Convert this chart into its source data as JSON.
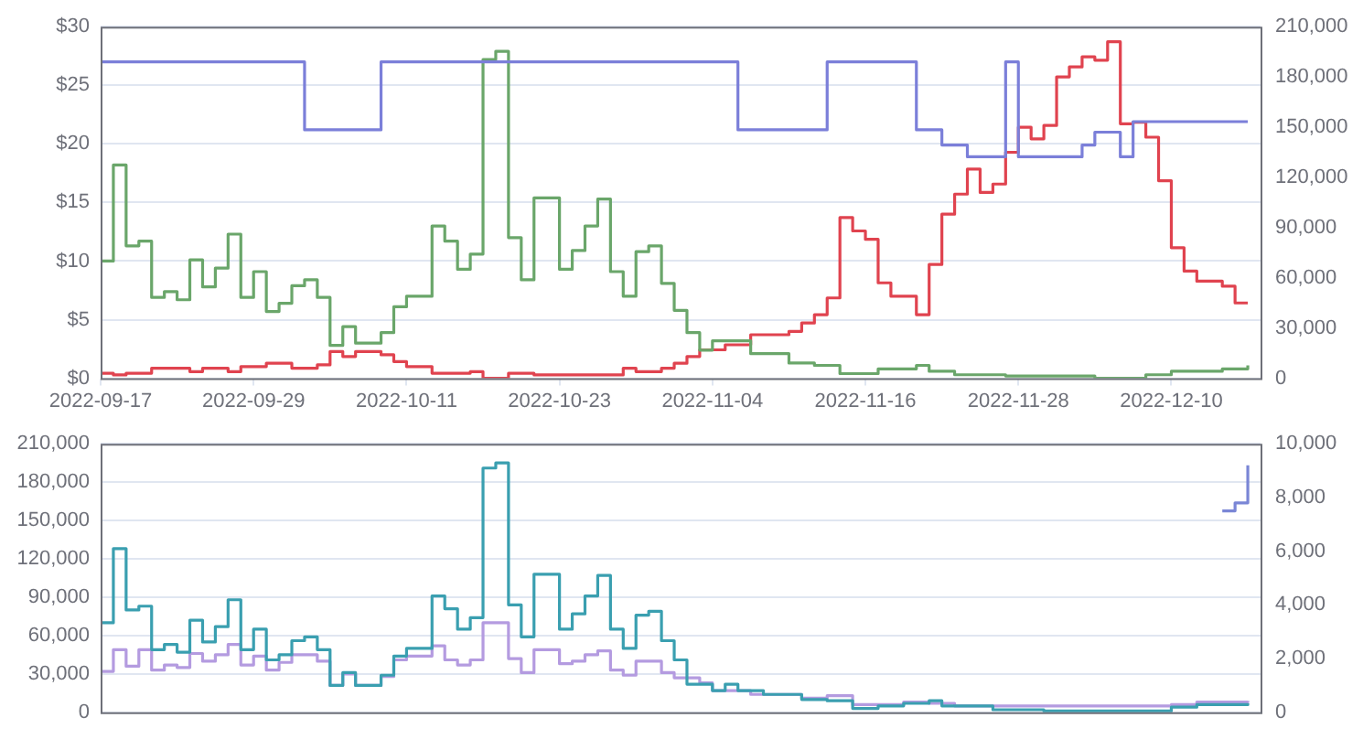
{
  "chart_data": [
    {
      "type": "step",
      "xlim": [
        "2022-09-17",
        "2022-12-17"
      ],
      "xticks": [
        "2022-09-17",
        "2022-09-29",
        "2022-10-11",
        "2022-10-23",
        "2022-11-04",
        "2022-11-16",
        "2022-11-28",
        "2022-12-10"
      ],
      "ylim": [
        0,
        30
      ],
      "yticks": [
        {
          "value": 0,
          "label": "$0"
        },
        {
          "value": 5,
          "label": "$5"
        },
        {
          "value": 10,
          "label": "$10"
        },
        {
          "value": 15,
          "label": "$15"
        },
        {
          "value": 20,
          "label": "$20"
        },
        {
          "value": 25,
          "label": "$25"
        },
        {
          "value": 30,
          "label": "$30"
        }
      ],
      "y2lim": [
        0,
        210000
      ],
      "y2ticks": [
        0,
        {
          "value": 30000,
          "label": "30,000"
        },
        {
          "value": 60000,
          "label": "60,000"
        },
        {
          "value": 90000,
          "label": "90,000"
        },
        {
          "value": 120000,
          "label": "120,000"
        },
        {
          "value": 150000,
          "label": "150,000"
        },
        {
          "value": 180000,
          "label": "180,000"
        },
        {
          "value": 210000,
          "label": "210,000"
        }
      ],
      "grid": "y",
      "line_style": "solid",
      "series": [
        {
          "color": "#7b7fd9",
          "x": [
            "2022-09-17",
            "2022-10-03",
            "2022-10-09",
            "2022-11-06",
            "2022-11-13",
            "2022-11-20",
            "2022-11-22",
            "2022-11-24",
            "2022-11-27",
            "2022-11-28",
            "2022-12-03",
            "2022-12-04",
            "2022-12-06",
            "2022-12-07",
            "2022-12-16"
          ],
          "values": [
            27,
            21.2,
            27,
            21.2,
            27,
            21.2,
            19.9,
            18.9,
            27,
            18.9,
            19.9,
            21,
            18.9,
            21.9,
            21.9
          ]
        },
        {
          "color": "#6aa66a",
          "x": [
            "2022-09-17",
            "2022-09-18",
            "2022-09-19",
            "2022-09-20",
            "2022-09-21",
            "2022-09-22",
            "2022-09-23",
            "2022-09-24",
            "2022-09-25",
            "2022-09-26",
            "2022-09-27",
            "2022-09-28",
            "2022-09-29",
            "2022-09-30",
            "2022-10-01",
            "2022-10-02",
            "2022-10-03",
            "2022-10-04",
            "2022-10-05",
            "2022-10-06",
            "2022-10-07",
            "2022-10-09",
            "2022-10-10",
            "2022-10-11",
            "2022-10-13",
            "2022-10-14",
            "2022-10-15",
            "2022-10-16",
            "2022-10-17",
            "2022-10-18",
            "2022-10-19",
            "2022-10-20",
            "2022-10-21",
            "2022-10-23",
            "2022-10-24",
            "2022-10-25",
            "2022-10-26",
            "2022-10-27",
            "2022-10-28",
            "2022-10-29",
            "2022-10-30",
            "2022-10-31",
            "2022-11-01",
            "2022-11-02",
            "2022-11-03",
            "2022-11-04",
            "2022-11-07",
            "2022-11-10",
            "2022-11-12",
            "2022-11-14",
            "2022-11-17",
            "2022-11-20",
            "2022-11-21",
            "2022-11-23",
            "2022-11-27",
            "2022-12-04",
            "2022-12-08",
            "2022-12-10",
            "2022-12-14",
            "2022-12-16"
          ],
          "values": [
            10.0,
            18.2,
            11.3,
            11.7,
            6.9,
            7.4,
            6.7,
            10.1,
            7.8,
            9.4,
            12.3,
            6.9,
            9.1,
            5.7,
            6.4,
            7.9,
            8.4,
            6.9,
            2.8,
            4.4,
            3.0,
            3.9,
            6.1,
            7.0,
            13.0,
            11.7,
            9.3,
            10.6,
            27.2,
            27.9,
            12.0,
            8.4,
            15.4,
            9.3,
            10.9,
            13.0,
            15.3,
            9.1,
            7.0,
            10.8,
            11.3,
            8.1,
            5.8,
            3.9,
            2.4,
            3.2,
            2.1,
            1.3,
            1.1,
            0.4,
            0.8,
            1.1,
            0.6,
            0.3,
            0.2,
            0,
            0.3,
            0.6,
            0.8,
            1.1
          ]
        },
        {
          "color": "#e0434f",
          "axis": "y2",
          "x": [
            "2022-09-17",
            "2022-09-18",
            "2022-09-19",
            "2022-09-21",
            "2022-09-24",
            "2022-09-25",
            "2022-09-27",
            "2022-09-28",
            "2022-09-30",
            "2022-10-02",
            "2022-10-04",
            "2022-10-05",
            "2022-10-06",
            "2022-10-07",
            "2022-10-09",
            "2022-10-10",
            "2022-10-11",
            "2022-10-13",
            "2022-10-16",
            "2022-10-17",
            "2022-10-19",
            "2022-10-21",
            "2022-10-28",
            "2022-10-29",
            "2022-10-31",
            "2022-11-01",
            "2022-11-02",
            "2022-11-03",
            "2022-11-05",
            "2022-11-07",
            "2022-11-10",
            "2022-11-11",
            "2022-11-12",
            "2022-11-13",
            "2022-11-14",
            "2022-11-15",
            "2022-11-16",
            "2022-11-17",
            "2022-11-18",
            "2022-11-20",
            "2022-11-21",
            "2022-11-22",
            "2022-11-23",
            "2022-11-24",
            "2022-11-25",
            "2022-11-26",
            "2022-11-27",
            "2022-11-28",
            "2022-11-29",
            "2022-11-30",
            "2022-12-01",
            "2022-12-02",
            "2022-12-03",
            "2022-12-04",
            "2022-12-05",
            "2022-12-06",
            "2022-12-07",
            "2022-12-08",
            "2022-12-09",
            "2022-12-10",
            "2022-12-11",
            "2022-12-12",
            "2022-12-14",
            "2022-12-15",
            "2022-12-16"
          ],
          "values": [
            3000,
            2000,
            3000,
            6000,
            4000,
            6000,
            4000,
            7000,
            9000,
            6000,
            8000,
            16000,
            13000,
            16000,
            14000,
            10000,
            7000,
            3000,
            4000,
            0,
            3000,
            2000,
            6000,
            4000,
            6000,
            9000,
            13000,
            17000,
            20000,
            26000,
            28000,
            33000,
            38000,
            48000,
            96000,
            88000,
            83000,
            57000,
            49000,
            38000,
            68000,
            98000,
            110000,
            125000,
            111000,
            116000,
            135000,
            150000,
            143000,
            151000,
            180000,
            186000,
            192000,
            190000,
            201000,
            152000,
            153000,
            144000,
            118000,
            78000,
            64000,
            58000,
            55000,
            45000,
            45000
          ]
        }
      ]
    },
    {
      "type": "step",
      "xlim": [
        "2022-09-17",
        "2022-12-17"
      ],
      "xticks": [
        "2022-09-17",
        "2022-09-29",
        "2022-10-11",
        "2022-10-23",
        "2022-11-04",
        "2022-11-16",
        "2022-11-28",
        "2022-12-10"
      ],
      "tick_labels": "y",
      "ylim": [
        0,
        210000
      ],
      "yticks": [
        0,
        {
          "value": 30000,
          "label": "30,000"
        },
        {
          "value": 60000,
          "label": "60,000"
        },
        {
          "value": 90000,
          "label": "90,000"
        },
        {
          "value": 120000,
          "label": "120,000"
        },
        {
          "value": 150000,
          "label": "150,000"
        },
        {
          "value": 180000,
          "label": "180,000"
        },
        {
          "value": 210000,
          "label": "210,000"
        }
      ],
      "y2lim": [
        0,
        10000
      ],
      "y2ticks": [
        0,
        {
          "value": 2000,
          "label": "2,000"
        },
        {
          "value": 4000,
          "label": "4,000"
        },
        {
          "value": 6000,
          "label": "6,000"
        },
        {
          "value": 8000,
          "label": "8,000"
        },
        {
          "value": 10000,
          "label": "10,000"
        }
      ],
      "grid": "y",
      "line_style": "solid",
      "series": [
        {
          "color": "#3a9fb0",
          "x": [
            "2022-09-17",
            "2022-09-18",
            "2022-09-19",
            "2022-09-20",
            "2022-09-21",
            "2022-09-22",
            "2022-09-23",
            "2022-09-24",
            "2022-09-25",
            "2022-09-26",
            "2022-09-27",
            "2022-09-28",
            "2022-09-29",
            "2022-09-30",
            "2022-10-01",
            "2022-10-02",
            "2022-10-03",
            "2022-10-04",
            "2022-10-05",
            "2022-10-06",
            "2022-10-07",
            "2022-10-09",
            "2022-10-10",
            "2022-10-11",
            "2022-10-13",
            "2022-10-14",
            "2022-10-15",
            "2022-10-16",
            "2022-10-17",
            "2022-10-18",
            "2022-10-19",
            "2022-10-20",
            "2022-10-21",
            "2022-10-23",
            "2022-10-24",
            "2022-10-25",
            "2022-10-26",
            "2022-10-27",
            "2022-10-28",
            "2022-10-29",
            "2022-10-30",
            "2022-10-31",
            "2022-11-01",
            "2022-11-02",
            "2022-11-04",
            "2022-11-05",
            "2022-11-06",
            "2022-11-08",
            "2022-11-11",
            "2022-11-13",
            "2022-11-15",
            "2022-11-17",
            "2022-11-19",
            "2022-11-21",
            "2022-11-22",
            "2022-11-26",
            "2022-11-30",
            "2022-12-10",
            "2022-12-12",
            "2022-12-16"
          ],
          "values": [
            70000,
            128000,
            80000,
            83000,
            49000,
            53000,
            47000,
            72000,
            55000,
            67000,
            88000,
            49000,
            65000,
            41000,
            45000,
            56000,
            59000,
            49000,
            21000,
            31000,
            21000,
            29000,
            44000,
            50000,
            91000,
            81000,
            65000,
            74000,
            191000,
            195000,
            84000,
            59000,
            108000,
            65000,
            77000,
            91000,
            107000,
            65000,
            50000,
            76000,
            79000,
            56000,
            41000,
            22000,
            17000,
            22000,
            17000,
            14000,
            10000,
            9000,
            3000,
            5000,
            7000,
            9000,
            5000,
            2000,
            1000,
            4000,
            6000,
            7000
          ]
        },
        {
          "color": "#b49be0",
          "x": [
            "2022-09-17",
            "2022-09-18",
            "2022-09-19",
            "2022-09-20",
            "2022-09-21",
            "2022-09-22",
            "2022-09-23",
            "2022-09-24",
            "2022-09-25",
            "2022-09-26",
            "2022-09-27",
            "2022-09-28",
            "2022-09-29",
            "2022-09-30",
            "2022-10-01",
            "2022-10-02",
            "2022-10-04",
            "2022-10-05",
            "2022-10-06",
            "2022-10-07",
            "2022-10-09",
            "2022-10-10",
            "2022-10-11",
            "2022-10-13",
            "2022-10-14",
            "2022-10-15",
            "2022-10-16",
            "2022-10-17",
            "2022-10-19",
            "2022-10-20",
            "2022-10-21",
            "2022-10-23",
            "2022-10-24",
            "2022-10-25",
            "2022-10-26",
            "2022-10-27",
            "2022-10-28",
            "2022-10-29",
            "2022-10-31",
            "2022-11-01",
            "2022-11-03",
            "2022-11-04",
            "2022-11-07",
            "2022-11-11",
            "2022-11-13",
            "2022-11-15",
            "2022-11-19",
            "2022-11-21",
            "2022-11-23",
            "2022-12-10",
            "2022-12-12",
            "2022-12-16"
          ],
          "values": [
            32000,
            49000,
            36000,
            49000,
            33000,
            37000,
            35000,
            46000,
            40000,
            45000,
            53000,
            37000,
            44000,
            33000,
            39000,
            45000,
            40000,
            21000,
            30000,
            21000,
            28000,
            41000,
            44000,
            52000,
            41000,
            37000,
            41000,
            70000,
            42000,
            31000,
            49000,
            38000,
            40000,
            45000,
            48000,
            33000,
            29000,
            40000,
            31000,
            27000,
            23000,
            17000,
            14000,
            11000,
            13000,
            6000,
            8000,
            7000,
            5000,
            6000,
            8000,
            9000
          ]
        },
        {
          "color": "#7a86d6",
          "axis": "y2",
          "x": [
            "2022-12-14",
            "2022-12-15",
            "2022-12-16"
          ],
          "values": [
            7500,
            7800,
            9200
          ]
        }
      ]
    }
  ]
}
